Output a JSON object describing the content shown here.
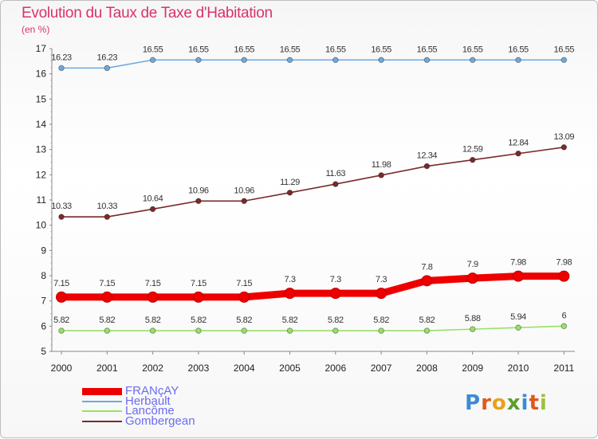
{
  "title": "Evolution du Taux de Taxe d'Habitation",
  "unit": "(en %)",
  "brand": "Proxiti",
  "chart_data": {
    "type": "line",
    "title": "Evolution du Taux de Taxe d'Habitation",
    "ylabel": "(en %)",
    "xlabel": "",
    "x": [
      "2000",
      "2001",
      "2002",
      "2003",
      "2004",
      "2005",
      "2006",
      "2007",
      "2008",
      "2009",
      "2010",
      "2011"
    ],
    "ylim": [
      5,
      17
    ],
    "yticks": [
      "5",
      "6",
      "7",
      "8",
      "9",
      "10",
      "11",
      "12",
      "13",
      "14",
      "15",
      "16",
      "17"
    ],
    "grid": false,
    "legend_position": "bottom-left",
    "series": [
      {
        "name": "FRANçAY",
        "color": "#ee0000",
        "values": [
          7.15,
          7.15,
          7.15,
          7.15,
          7.15,
          7.3,
          7.3,
          7.3,
          7.8,
          7.9,
          7.98,
          7.98
        ],
        "labels": [
          "7.15",
          "7.15",
          "7.15",
          "7.15",
          "7.15",
          "7.3",
          "7.3",
          "7.3",
          "7.8",
          "7.9",
          "7.98",
          "7.98"
        ]
      },
      {
        "name": "Herbault",
        "color": "#6fa8dc",
        "values": [
          16.23,
          16.23,
          16.55,
          16.55,
          16.55,
          16.55,
          16.55,
          16.55,
          16.55,
          16.55,
          16.55,
          16.55
        ],
        "labels": [
          "16.23",
          "16.23",
          "16.55",
          "16.55",
          "16.55",
          "16.55",
          "16.55",
          "16.55",
          "16.55",
          "16.55",
          "16.55",
          "16.55"
        ]
      },
      {
        "name": "Lancôme",
        "color": "#99e066",
        "values": [
          5.82,
          5.82,
          5.82,
          5.82,
          5.82,
          5.82,
          5.82,
          5.82,
          5.82,
          5.88,
          5.94,
          6
        ],
        "labels": [
          "5.82",
          "5.82",
          "5.82",
          "5.82",
          "5.82",
          "5.82",
          "5.82",
          "5.82",
          "5.82",
          "5.88",
          "5.94",
          "6"
        ]
      },
      {
        "name": "Gombergean",
        "color": "#7a2a2a",
        "values": [
          10.33,
          10.33,
          10.64,
          10.96,
          10.96,
          11.29,
          11.63,
          11.98,
          12.34,
          12.59,
          12.84,
          13.09
        ],
        "labels": [
          "10.33",
          "10.33",
          "10.64",
          "10.96",
          "10.96",
          "11.29",
          "11.63",
          "11.98",
          "12.34",
          "12.59",
          "12.84",
          "13.09"
        ]
      }
    ]
  }
}
